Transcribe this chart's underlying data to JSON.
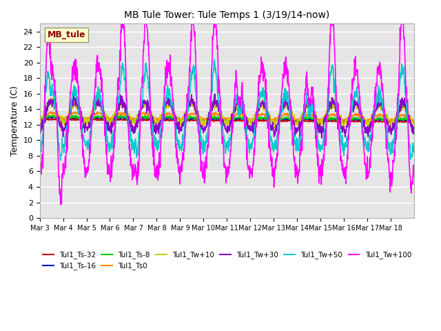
{
  "title": "MB Tule Tower: Tule Temps 1 (3/19/14-now)",
  "ylabel": "Temperature (C)",
  "ylim": [
    0,
    25
  ],
  "yticks": [
    0,
    2,
    4,
    6,
    8,
    10,
    12,
    14,
    16,
    18,
    20,
    22,
    24
  ],
  "xtick_labels": [
    "Mar 3",
    "Mar 4",
    "Mar 5",
    "Mar 6",
    "Mar 7",
    "Mar 8",
    "Mar 9",
    "Mar 10",
    "Mar 11",
    "Mar 12",
    "Mar 13",
    "Mar 14",
    "Mar 15",
    "Mar 16",
    "Mar 17",
    "Mar 18"
  ],
  "bg_color": "#e5e5e5",
  "grid_color": "#ffffff",
  "series": [
    {
      "label": "Tul1_Ts-32",
      "color": "#cc0000",
      "lw": 1.2
    },
    {
      "label": "Tul1_Ts-16",
      "color": "#0000cc",
      "lw": 1.2
    },
    {
      "label": "Tul1_Ts-8",
      "color": "#00cc00",
      "lw": 1.2
    },
    {
      "label": "Tul1_Ts0",
      "color": "#ff8800",
      "lw": 1.2
    },
    {
      "label": "Tul1_Tw+10",
      "color": "#cccc00",
      "lw": 1.2
    },
    {
      "label": "Tul1_Tw+30",
      "color": "#8800cc",
      "lw": 1.2
    },
    {
      "label": "Tul1_Tw+50",
      "color": "#00cccc",
      "lw": 1.2
    },
    {
      "label": "Tul1_Tw+100",
      "color": "#ff00ff",
      "lw": 1.2
    }
  ],
  "annotation_text": "MB_tule",
  "annotation_color": "#8B0000",
  "annotation_bg": "#ffffcc",
  "annotation_edge": "#999966"
}
